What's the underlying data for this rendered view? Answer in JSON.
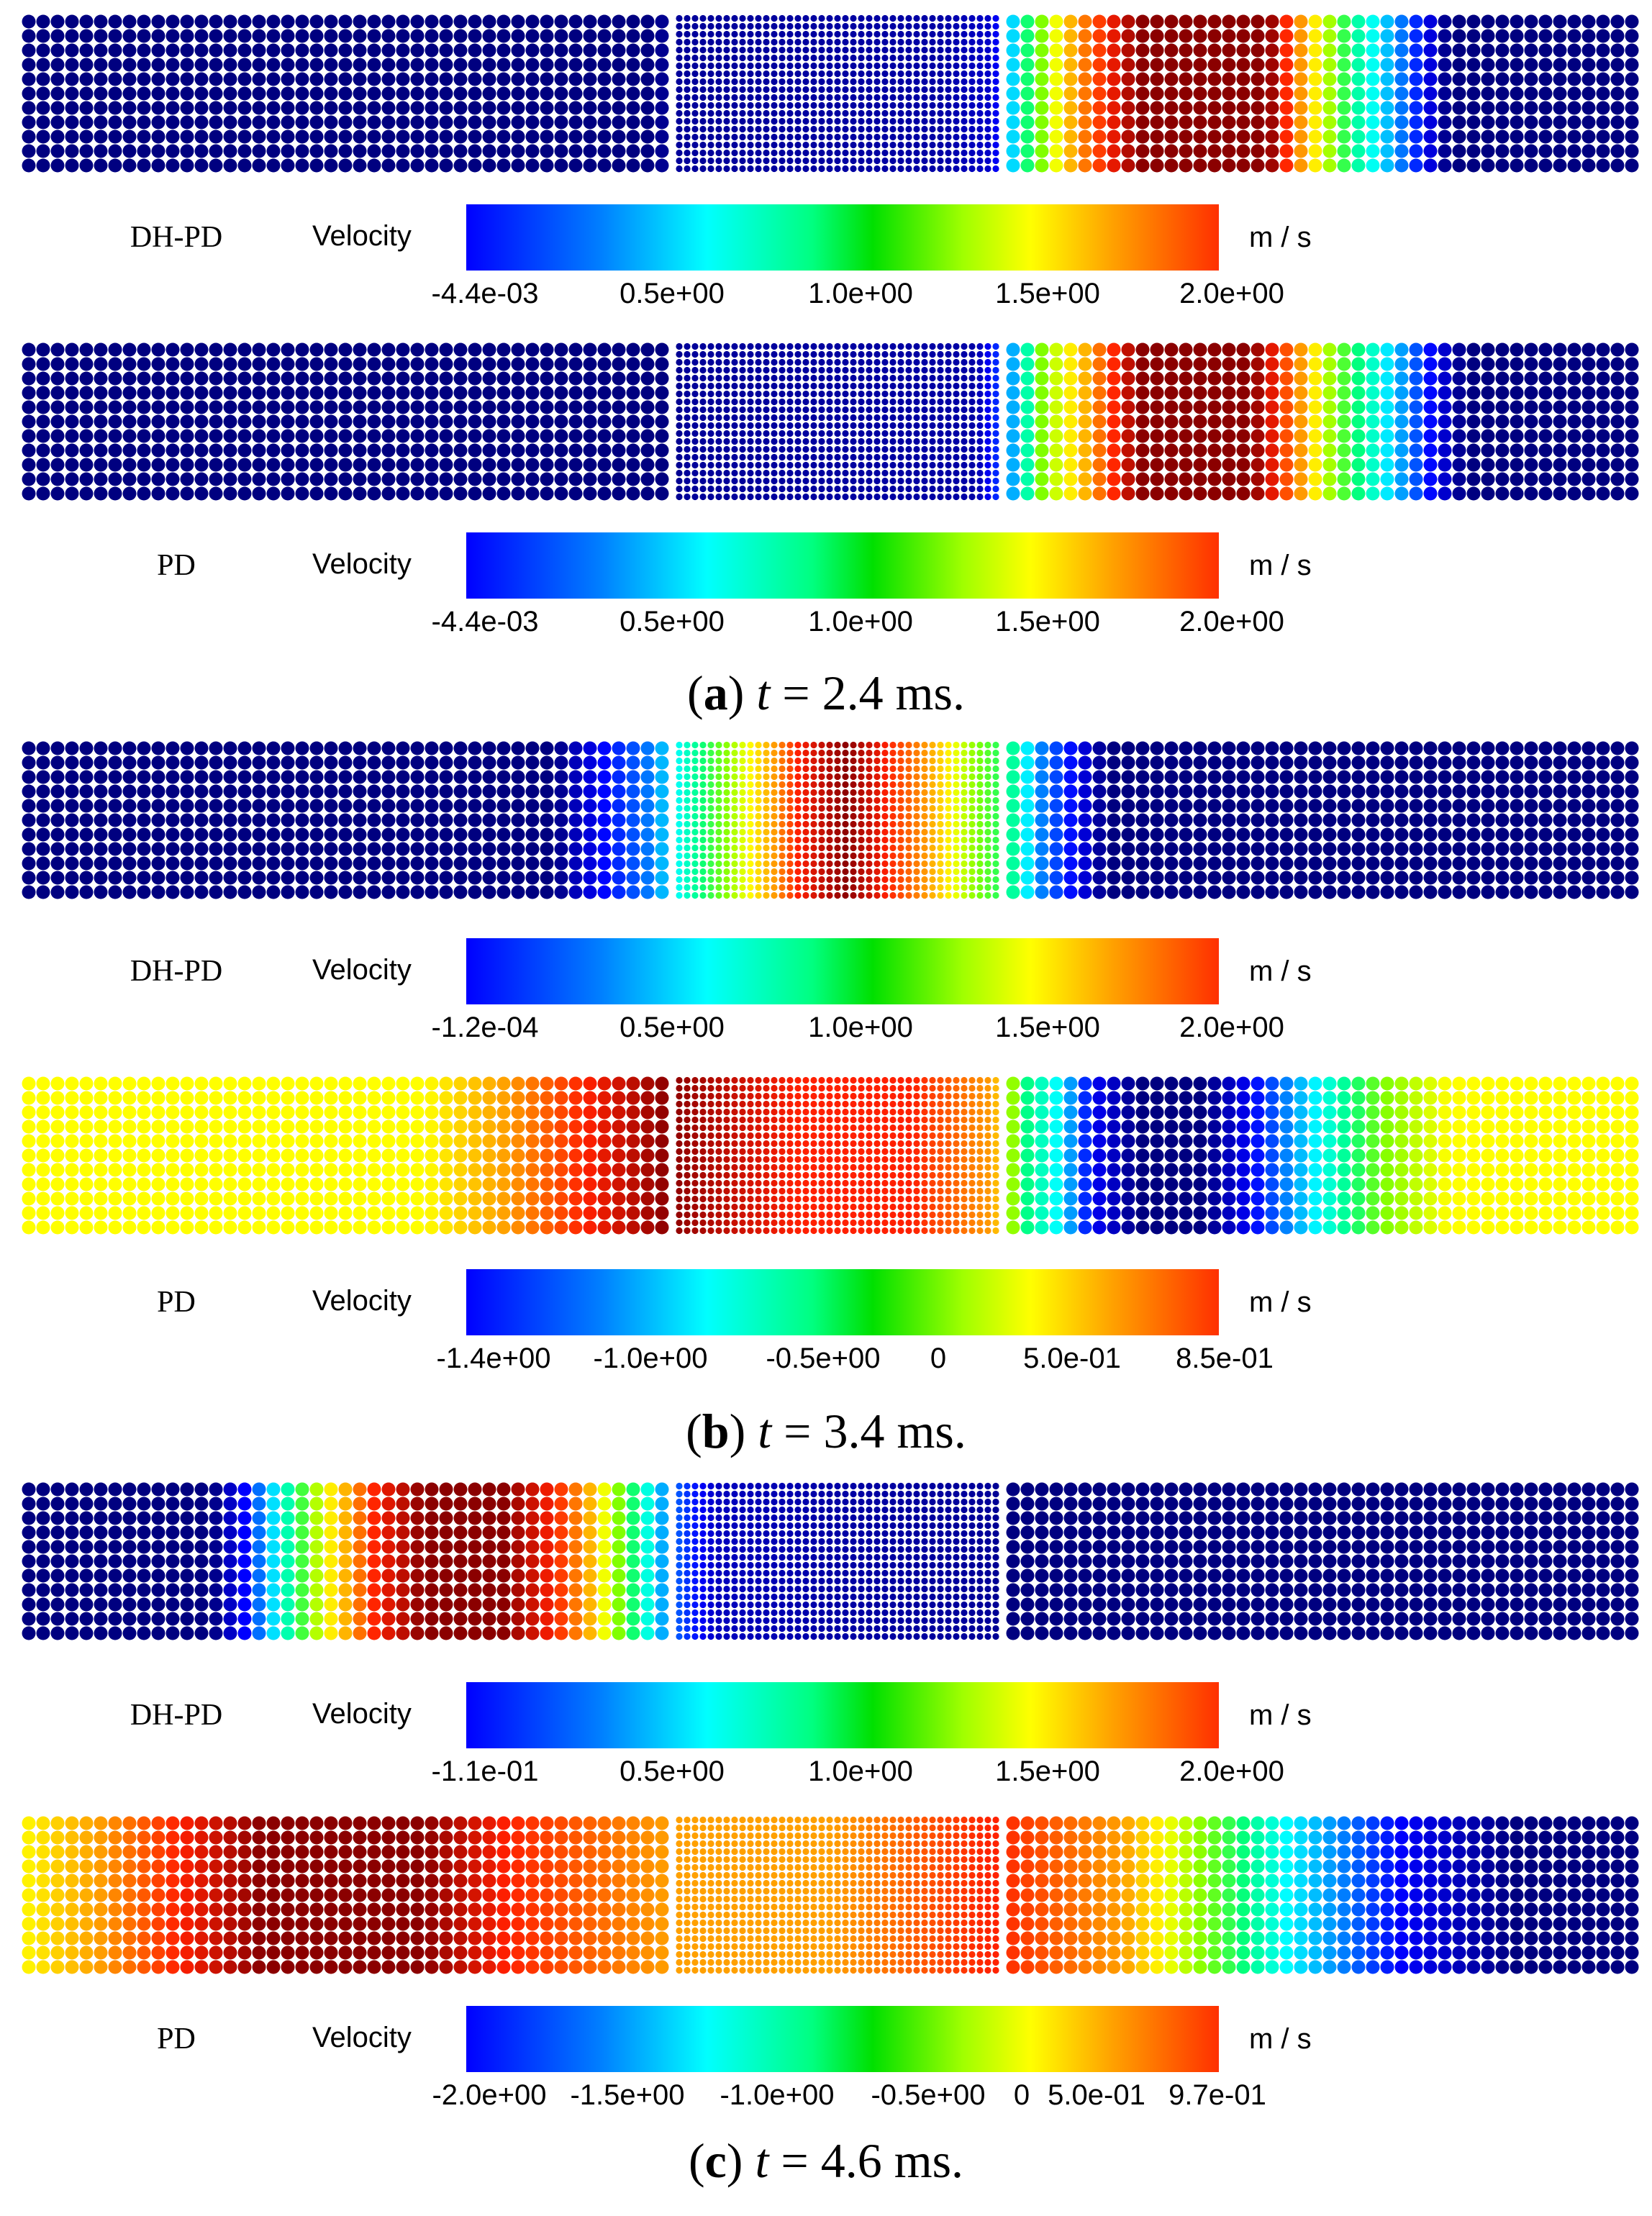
{
  "colors": {
    "c0": "#000080",
    "c1": "#0000ff",
    "c2": "#0080ff",
    "c3": "#00ffff",
    "c4": "#00ff80",
    "c5": "#80ff00",
    "c6": "#ffff00",
    "c7": "#ffa000",
    "c8": "#ff2000",
    "c9": "#8b0000"
  },
  "panels": [
    {
      "label": "a",
      "time": "2.4 ms.",
      "fields": [
        {
          "method": "DH-PD",
          "quantity": "Velocity",
          "unit": "m / s",
          "ticks": [
            "-4.4e-03",
            "0.5e+00",
            "1.0e+00",
            "1.5e+00",
            "2.0e+00"
          ],
          "profile": [
            [
              0,
              0
            ],
            [
              0.39,
              0
            ],
            [
              0.4,
              0.2
            ],
            [
              0.57,
              0.3
            ],
            [
              0.6,
              0.6
            ],
            [
              0.62,
              4
            ],
            [
              0.65,
              7
            ],
            [
              0.69,
              9
            ],
            [
              0.77,
              9
            ],
            [
              0.79,
              7
            ],
            [
              0.82,
              4
            ],
            [
              0.85,
              2
            ],
            [
              0.88,
              0
            ],
            [
              1.0,
              0
            ]
          ]
        },
        {
          "method": "PD",
          "quantity": "Velocity",
          "unit": "m / s",
          "ticks": [
            "-4.4e-03",
            "0.5e+00",
            "1.0e+00",
            "1.5e+00",
            "2.0e+00"
          ],
          "profile": [
            [
              0,
              0
            ],
            [
              0.4,
              0
            ],
            [
              0.41,
              0.2
            ],
            [
              0.59,
              0.3
            ],
            [
              0.61,
              2
            ],
            [
              0.63,
              5
            ],
            [
              0.66,
              7
            ],
            [
              0.69,
              9
            ],
            [
              0.76,
              9
            ],
            [
              0.79,
              7
            ],
            [
              0.81,
              5
            ],
            [
              0.84,
              3
            ],
            [
              0.87,
              1
            ],
            [
              0.89,
              0
            ],
            [
              1.0,
              0
            ]
          ]
        }
      ]
    },
    {
      "label": "b",
      "time": "3.4 ms.",
      "fields": [
        {
          "method": "DH-PD",
          "quantity": "Velocity",
          "unit": "m / s",
          "ticks": [
            "-1.2e-04",
            "0.5e+00",
            "1.0e+00",
            "1.5e+00",
            "2.0e+00"
          ],
          "profile": [
            [
              0,
              0
            ],
            [
              0.33,
              0
            ],
            [
              0.36,
              1
            ],
            [
              0.39,
              2
            ],
            [
              0.42,
              4
            ],
            [
              0.45,
              6
            ],
            [
              0.48,
              8
            ],
            [
              0.51,
              9
            ],
            [
              0.56,
              7
            ],
            [
              0.59,
              5
            ],
            [
              0.61,
              4
            ],
            [
              0.63,
              2
            ],
            [
              0.65,
              1
            ],
            [
              0.67,
              0
            ],
            [
              1.0,
              0
            ]
          ]
        },
        {
          "method": "PD",
          "quantity": "Velocity",
          "unit": "m / s",
          "ticks": [
            "-1.4e+00",
            "-1.0e+00",
            "-0.5e+00",
            "0",
            "5.0e-01",
            "8.5e-01"
          ],
          "profile": [
            [
              0,
              6
            ],
            [
              0.25,
              6
            ],
            [
              0.3,
              7
            ],
            [
              0.35,
              8
            ],
            [
              0.4,
              9
            ],
            [
              0.48,
              8
            ],
            [
              0.55,
              8
            ],
            [
              0.6,
              7
            ],
            [
              0.62,
              4
            ],
            [
              0.64,
              3
            ],
            [
              0.66,
              1
            ],
            [
              0.69,
              0
            ],
            [
              0.73,
              0
            ],
            [
              0.76,
              1
            ],
            [
              0.8,
              3
            ],
            [
              0.84,
              5
            ],
            [
              0.88,
              6
            ],
            [
              1.0,
              6
            ]
          ]
        }
      ]
    },
    {
      "label": "c",
      "time": "4.6 ms.",
      "fields": [
        {
          "method": "DH-PD",
          "quantity": "Velocity",
          "unit": "m / s",
          "ticks": [
            "-1.1e-01",
            "0.5e+00",
            "1.0e+00",
            "1.5e+00",
            "2.0e+00"
          ],
          "profile": [
            [
              0,
              0
            ],
            [
              0.12,
              0
            ],
            [
              0.14,
              1
            ],
            [
              0.16,
              3
            ],
            [
              0.19,
              6
            ],
            [
              0.22,
              8
            ],
            [
              0.25,
              9
            ],
            [
              0.3,
              9
            ],
            [
              0.33,
              8
            ],
            [
              0.35,
              7
            ],
            [
              0.37,
              5
            ],
            [
              0.4,
              2
            ],
            [
              0.43,
              0.5
            ],
            [
              0.5,
              0.3
            ],
            [
              0.6,
              0.2
            ],
            [
              0.61,
              0
            ],
            [
              1.0,
              0
            ]
          ]
        },
        {
          "method": "PD",
          "quantity": "Velocity",
          "unit": "m / s",
          "ticks": [
            "-2.0e+00",
            "-1.5e+00",
            "-1.0e+00",
            "-0.5e+00",
            "0",
            "5.0e-01",
            "9.7e-01"
          ],
          "profile": [
            [
              0,
              6
            ],
            [
              0.05,
              7
            ],
            [
              0.1,
              8
            ],
            [
              0.15,
              9
            ],
            [
              0.25,
              9
            ],
            [
              0.3,
              8
            ],
            [
              0.4,
              7
            ],
            [
              0.5,
              7
            ],
            [
              0.6,
              8
            ],
            [
              0.68,
              7
            ],
            [
              0.73,
              5
            ],
            [
              0.78,
              3
            ],
            [
              0.85,
              1
            ],
            [
              0.92,
              0
            ],
            [
              1.0,
              0
            ]
          ]
        }
      ]
    }
  ]
}
